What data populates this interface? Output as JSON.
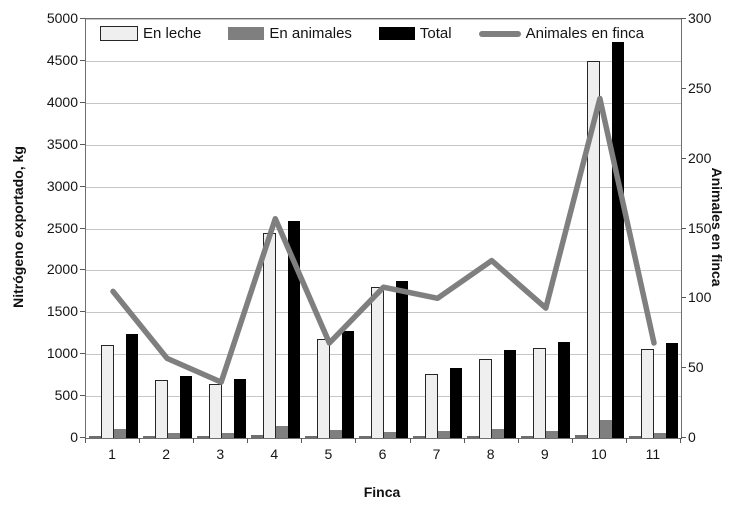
{
  "chart_data": {
    "type": "combo-bar-line",
    "title": "",
    "xlabel": "Finca",
    "ylabel_left": "Nitrógeno exportado, kg",
    "ylabel_right": "Animales en finca",
    "ylim_left": [
      0,
      5000
    ],
    "ytick_step_left": 500,
    "ylim_right": [
      0,
      300
    ],
    "ytick_step_right": 50,
    "grid": "horizontal",
    "legend_position": "top-inside",
    "categories": [
      "1",
      "2",
      "3",
      "4",
      "5",
      "6",
      "7",
      "8",
      "9",
      "10",
      "11"
    ],
    "series": [
      {
        "name": "",
        "in_legend": false,
        "type": "bar",
        "axis": "left",
        "color": "#6f6f6f",
        "values": [
          25,
          25,
          25,
          30,
          25,
          25,
          25,
          25,
          25,
          30,
          25
        ]
      },
      {
        "name": "En leche",
        "in_legend": true,
        "type": "bar",
        "axis": "left",
        "color": "#efefef",
        "values": [
          1110,
          690,
          640,
          2450,
          1180,
          1800,
          760,
          940,
          1070,
          4500,
          1060
        ]
      },
      {
        "name": "En animales",
        "in_legend": true,
        "type": "bar",
        "axis": "left",
        "color": "#7f7f7f",
        "values": [
          110,
          55,
          60,
          140,
          95,
          70,
          80,
          110,
          80,
          220,
          65
        ]
      },
      {
        "name": "Total",
        "in_legend": true,
        "type": "bar",
        "axis": "left",
        "color": "#000000",
        "values": [
          1240,
          745,
          710,
          2590,
          1280,
          1870,
          840,
          1045,
          1150,
          4720,
          1130
        ]
      },
      {
        "name": "Animales en finca",
        "in_legend": true,
        "type": "line",
        "axis": "right",
        "color": "#7f7f7f",
        "values": [
          105,
          57,
          40,
          157,
          68,
          108,
          100,
          127,
          93,
          243,
          68
        ]
      }
    ]
  }
}
